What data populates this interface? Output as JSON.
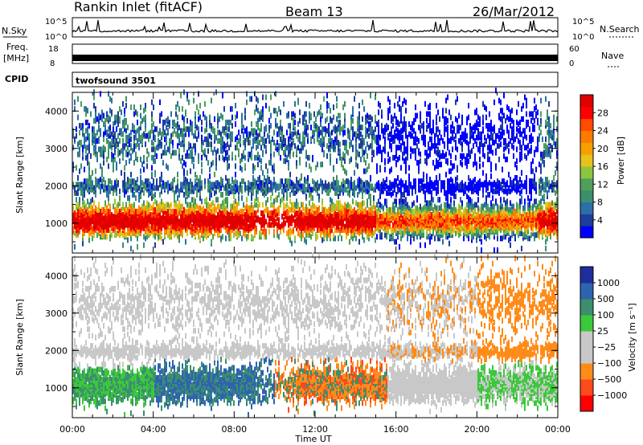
{
  "header": {
    "station": "Rankin Inlet (fitACF)",
    "beam": "Beam 13",
    "date": "26/Mar/2012"
  },
  "strips": {
    "nsky_label": "N.Sky",
    "nsky_ticks": [
      "10^5",
      "10^0"
    ],
    "nsearch_label": "N.Search",
    "freq_label_line1": "Freq.",
    "freq_label_line2": "[MHz]",
    "freq_ticks": [
      "18",
      "8"
    ],
    "nave_label": "Nave",
    "nave_ticks": [
      "60",
      "0"
    ],
    "cpid_label": "CPID",
    "cpid_value": "twofsound 3501"
  },
  "colors": {
    "power": [
      "#0000ff",
      "#1e3d9c",
      "#2c6fa8",
      "#3b8f6e",
      "#4fa05a",
      "#8cc63e",
      "#e6c21a",
      "#f5a000",
      "#ff7a00",
      "#ff4a00",
      "#ff0000",
      "#e00000"
    ],
    "velocity": [
      "#ff0000",
      "#ff4a1a",
      "#ff8c1a",
      "#c8c8c8",
      "#c8c8c8",
      "#3cc83c",
      "#3b8f6e",
      "#2e63b0",
      "#1e2e9c"
    ]
  },
  "chart_data": [
    {
      "type": "heatmap",
      "name": "power",
      "xlabel": "",
      "ylabel": "Slant Range [km]",
      "x_ticks": [
        "00:00",
        "04:00",
        "08:00",
        "12:00",
        "16:00",
        "20:00",
        "00:00"
      ],
      "y_ticks": [
        "1000",
        "2000",
        "3000",
        "4000"
      ],
      "ylim": [
        200,
        4500
      ],
      "xlim_hours": [
        0,
        24
      ],
      "colorbar_label": "Power [dB]",
      "colorbar_ticks": [
        "4",
        "8",
        "12",
        "16",
        "20",
        "24",
        "28"
      ],
      "colorbar_range": [
        0,
        32
      ]
    },
    {
      "type": "heatmap",
      "name": "velocity",
      "xlabel": "Time UT",
      "ylabel": "Slant Range [km]",
      "x_ticks": [
        "00:00",
        "04:00",
        "08:00",
        "12:00",
        "16:00",
        "20:00",
        "00:00"
      ],
      "y_ticks": [
        "1000",
        "2000",
        "3000",
        "4000"
      ],
      "ylim": [
        200,
        4500
      ],
      "xlim_hours": [
        0,
        24
      ],
      "colorbar_label": "Velocity [m s⁻¹]",
      "colorbar_ticks": [
        "1000",
        "500",
        "100",
        "25",
        "−25",
        "−100",
        "−500",
        "−1000"
      ]
    }
  ]
}
